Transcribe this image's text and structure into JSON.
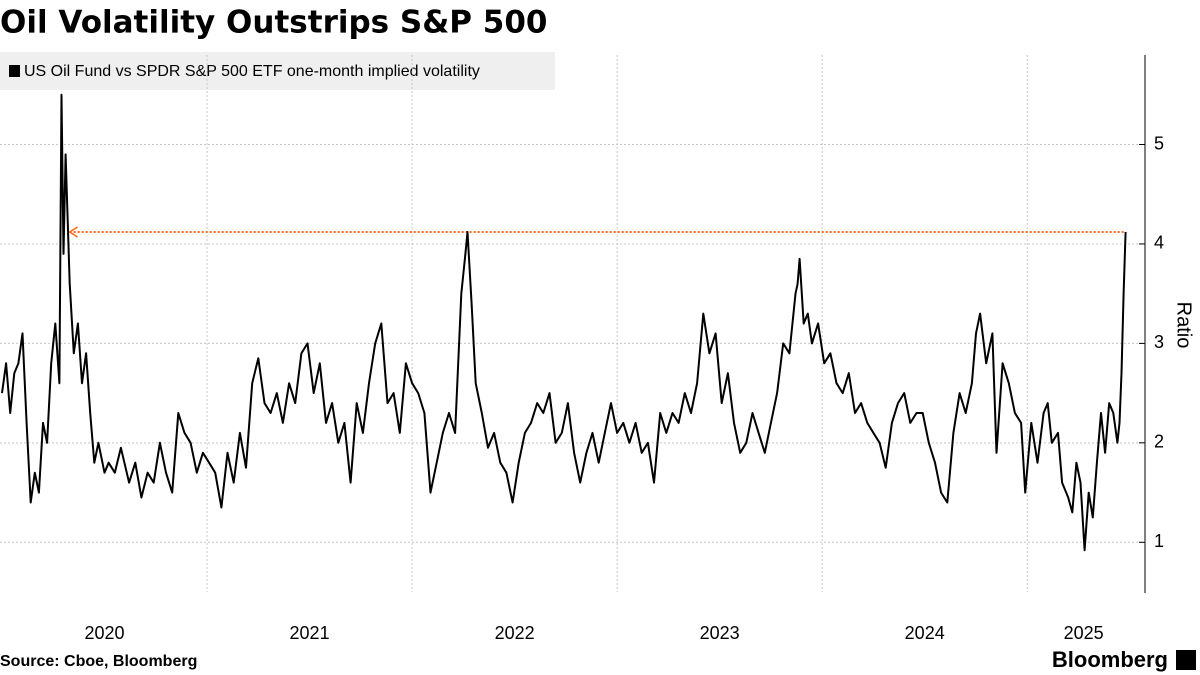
{
  "chart_data": {
    "type": "line",
    "title": "Oil Volatility Outstrips S&P 500",
    "y_label": "Ratio",
    "source": "Source: Cboe, Bloomberg",
    "brand": "Bloomberg",
    "xlim": [
      2020.0,
      2025.55
    ],
    "xticks": [
      2020,
      2021,
      2022,
      2023,
      2024,
      2025
    ],
    "ylim": [
      0.5,
      5.9
    ],
    "yticks": [
      1,
      2,
      3,
      4,
      5
    ],
    "grid": true,
    "legend": "top-left",
    "reference_line": {
      "value": 4.12,
      "x": [
        2020.33,
        2025.48
      ],
      "color": "#ff6a14"
    },
    "x": [
      2020.0,
      2020.02,
      2020.04,
      2020.06,
      2020.08,
      2020.1,
      2020.12,
      2020.14,
      2020.16,
      2020.18,
      2020.2,
      2020.22,
      2020.24,
      2020.26,
      2020.28,
      2020.29,
      2020.3,
      2020.31,
      2020.33,
      2020.35,
      2020.37,
      2020.39,
      2020.41,
      2020.43,
      2020.45,
      2020.47,
      2020.5,
      2020.52,
      2020.55,
      2020.58,
      2020.62,
      2020.65,
      2020.68,
      2020.71,
      2020.74,
      2020.77,
      2020.8,
      2020.83,
      2020.86,
      2020.89,
      2020.92,
      2020.95,
      2020.98,
      2021.01,
      2021.04,
      2021.07,
      2021.1,
      2021.13,
      2021.16,
      2021.19,
      2021.22,
      2021.25,
      2021.28,
      2021.31,
      2021.34,
      2021.37,
      2021.4,
      2021.43,
      2021.46,
      2021.49,
      2021.52,
      2021.55,
      2021.58,
      2021.61,
      2021.64,
      2021.67,
      2021.7,
      2021.73,
      2021.76,
      2021.79,
      2021.82,
      2021.85,
      2021.88,
      2021.91,
      2021.94,
      2021.97,
      2022.0,
      2022.03,
      2022.06,
      2022.09,
      2022.12,
      2022.15,
      2022.18,
      2022.21,
      2022.24,
      2022.26,
      2022.27,
      2022.29,
      2022.31,
      2022.34,
      2022.37,
      2022.4,
      2022.43,
      2022.46,
      2022.49,
      2022.52,
      2022.55,
      2022.58,
      2022.61,
      2022.64,
      2022.67,
      2022.7,
      2022.73,
      2022.76,
      2022.79,
      2022.82,
      2022.85,
      2022.88,
      2022.91,
      2022.94,
      2022.97,
      2023.0,
      2023.03,
      2023.06,
      2023.09,
      2023.12,
      2023.15,
      2023.18,
      2023.21,
      2023.24,
      2023.27,
      2023.3,
      2023.33,
      2023.36,
      2023.39,
      2023.42,
      2023.45,
      2023.48,
      2023.51,
      2023.54,
      2023.57,
      2023.6,
      2023.63,
      2023.66,
      2023.69,
      2023.72,
      2023.75,
      2023.78,
      2023.81,
      2023.84,
      2023.87,
      2023.88,
      2023.89,
      2023.91,
      2023.93,
      2023.95,
      2023.98,
      2024.01,
      2024.04,
      2024.07,
      2024.1,
      2024.13,
      2024.16,
      2024.19,
      2024.22,
      2024.25,
      2024.28,
      2024.31,
      2024.34,
      2024.37,
      2024.4,
      2024.43,
      2024.46,
      2024.49,
      2024.52,
      2024.55,
      2024.58,
      2024.61,
      2024.64,
      2024.67,
      2024.7,
      2024.73,
      2024.75,
      2024.77,
      2024.8,
      2024.83,
      2024.85,
      2024.88,
      2024.91,
      2024.94,
      2024.97,
      2024.99,
      2025.02,
      2025.05,
      2025.08,
      2025.1,
      2025.12,
      2025.15,
      2025.17,
      2025.2,
      2025.22,
      2025.24,
      2025.26,
      2025.28,
      2025.3,
      2025.32,
      2025.34,
      2025.36,
      2025.38,
      2025.4,
      2025.42,
      2025.44,
      2025.45,
      2025.46,
      2025.47,
      2025.48
    ],
    "series": [
      {
        "name": "US Oil Fund vs SPDR S&P 500 ETF one-month implied volatility",
        "color": "#000000",
        "values": [
          2.5,
          2.8,
          2.3,
          2.7,
          2.8,
          3.1,
          2.2,
          1.4,
          1.7,
          1.5,
          2.2,
          2.0,
          2.8,
          3.2,
          2.6,
          5.5,
          3.9,
          4.9,
          3.6,
          2.9,
          3.2,
          2.6,
          2.9,
          2.3,
          1.8,
          2.0,
          1.7,
          1.8,
          1.7,
          1.95,
          1.6,
          1.8,
          1.45,
          1.7,
          1.6,
          2.0,
          1.7,
          1.5,
          2.3,
          2.1,
          2.0,
          1.7,
          1.9,
          1.8,
          1.7,
          1.35,
          1.9,
          1.6,
          2.1,
          1.75,
          2.6,
          2.85,
          2.4,
          2.3,
          2.5,
          2.2,
          2.6,
          2.4,
          2.9,
          3.0,
          2.5,
          2.8,
          2.2,
          2.4,
          2.0,
          2.2,
          1.6,
          2.4,
          2.1,
          2.6,
          3.0,
          3.2,
          2.4,
          2.5,
          2.1,
          2.8,
          2.6,
          2.5,
          2.3,
          1.5,
          1.8,
          2.1,
          2.3,
          2.1,
          3.5,
          3.9,
          4.12,
          3.4,
          2.6,
          2.3,
          1.95,
          2.1,
          1.8,
          1.7,
          1.4,
          1.8,
          2.1,
          2.2,
          2.4,
          2.3,
          2.5,
          2.0,
          2.1,
          2.4,
          1.9,
          1.6,
          1.9,
          2.1,
          1.8,
          2.1,
          2.4,
          2.1,
          2.2,
          2.0,
          2.2,
          1.9,
          2.0,
          1.6,
          2.3,
          2.1,
          2.3,
          2.2,
          2.5,
          2.3,
          2.6,
          3.3,
          2.9,
          3.1,
          2.4,
          2.7,
          2.2,
          1.9,
          2.0,
          2.3,
          2.1,
          1.9,
          2.2,
          2.5,
          3.0,
          2.9,
          3.5,
          3.6,
          3.85,
          3.2,
          3.3,
          3.0,
          3.2,
          2.8,
          2.9,
          2.6,
          2.5,
          2.7,
          2.3,
          2.4,
          2.2,
          2.1,
          2.0,
          1.75,
          2.2,
          2.4,
          2.5,
          2.2,
          2.3,
          2.3,
          2.0,
          1.8,
          1.5,
          1.4,
          2.1,
          2.5,
          2.3,
          2.6,
          3.1,
          3.3,
          2.8,
          3.1,
          1.9,
          2.8,
          2.6,
          2.3,
          2.2,
          1.5,
          2.2,
          1.8,
          2.3,
          2.4,
          2.0,
          2.1,
          1.6,
          1.45,
          1.3,
          1.8,
          1.6,
          0.92,
          1.5,
          1.25,
          1.8,
          2.3,
          1.9,
          2.4,
          2.3,
          2.0,
          2.2,
          2.7,
          3.5,
          4.12
        ]
      }
    ]
  }
}
